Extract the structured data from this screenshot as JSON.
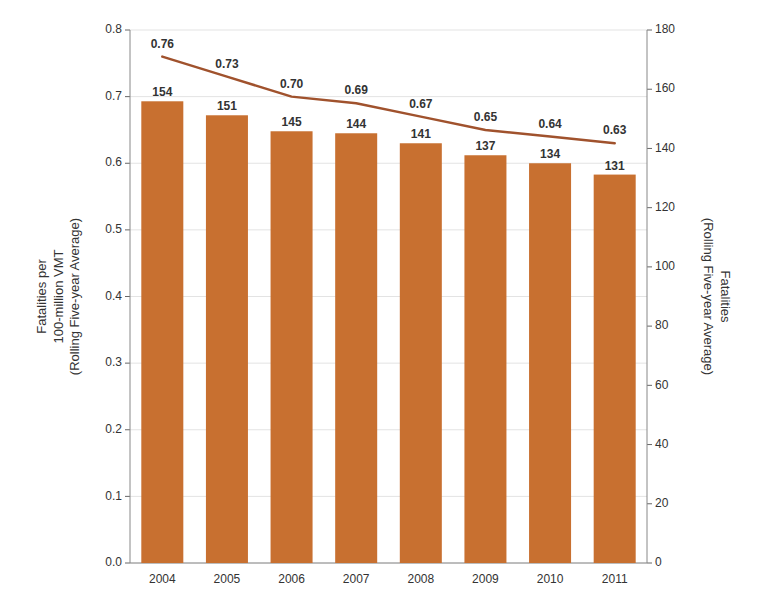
{
  "chart_data": {
    "type": "bar",
    "categories": [
      "2004",
      "2005",
      "2006",
      "2007",
      "2008",
      "2009",
      "2010",
      "2011"
    ],
    "series": [
      {
        "type": "bar",
        "color": "#C87030",
        "values": [
          0.693,
          0.672,
          0.648,
          0.645,
          0.63,
          0.612,
          0.6,
          0.583
        ],
        "counts": [
          154,
          151,
          145,
          144,
          141,
          137,
          134,
          131
        ]
      },
      {
        "type": "line",
        "color": "#A0522D",
        "values": [
          0.76,
          0.73,
          0.7,
          0.69,
          0.67,
          0.65,
          0.64,
          0.63
        ],
        "data_labels": true,
        "value_labels": [
          "0.76",
          "0.73",
          "0.70",
          "0.69",
          "0.67",
          "0.65",
          "0.64",
          "0.63"
        ]
      }
    ],
    "ylabel": "Fatalities per\n100-million VMT\n(Rolling Five-year Average)",
    "y2label": "Fatalities\n(Rolling Five-year Average)",
    "ylim": [
      0,
      0.8
    ],
    "yticks": [
      {
        "value": 0,
        "label": "0.0"
      },
      0.1,
      0.2,
      0.3,
      0.4,
      0.5,
      0.6,
      0.7,
      0.8
    ],
    "y2lim": [
      0,
      180
    ],
    "y2ticks": [
      0,
      20,
      40,
      60,
      80,
      100,
      120,
      140,
      160,
      180
    ],
    "grid": true
  }
}
